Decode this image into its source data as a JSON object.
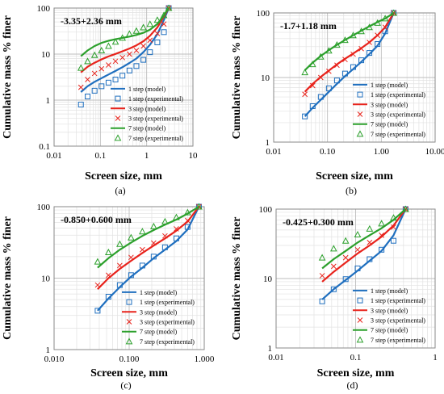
{
  "figure": {
    "ylabel": "Cumulative mass % finer",
    "xlabel": "Screen size, mm"
  },
  "chart_data": [
    {
      "type": "line",
      "panel": "(a)",
      "annotation": "-3.35+2.36 mm",
      "xlabel": "Screen size, mm",
      "ylabel": "Cumulative mass % finer",
      "x_scale": "log",
      "y_scale": "log",
      "xlim": [
        0.01,
        10
      ],
      "ylim": [
        0.1,
        100
      ],
      "x_ticks": [
        "0.01",
        "0.1",
        "1",
        "10"
      ],
      "y_ticks": [
        "0.1",
        "1",
        "10",
        "100"
      ],
      "legend": "bottom-right",
      "series": [
        {
          "name": "1 step (model)",
          "kind": "model",
          "color": "#1f6fbf",
          "x": [
            0.038,
            0.053,
            0.075,
            0.106,
            0.15,
            0.212,
            0.3,
            0.425,
            0.6,
            0.85,
            1.18,
            1.7,
            2.36,
            3.0
          ],
          "y": [
            1.5,
            2.0,
            2.5,
            3.0,
            3.6,
            4.3,
            5.2,
            6.4,
            8.0,
            11,
            16,
            27,
            55,
            100
          ]
        },
        {
          "name": "1 step (experimental)",
          "kind": "experimental",
          "color": "#1f6fbf",
          "marker": "square",
          "x": [
            0.038,
            0.053,
            0.075,
            0.106,
            0.15,
            0.212,
            0.3,
            0.425,
            0.6,
            0.85,
            1.18,
            1.7,
            2.36,
            3.0
          ],
          "y": [
            0.8,
            1.2,
            1.6,
            2.0,
            2.4,
            2.8,
            3.4,
            4.4,
            5.5,
            7.5,
            11,
            18,
            30,
            100
          ]
        },
        {
          "name": "3 step (model)",
          "kind": "model",
          "color": "#e8231c",
          "x": [
            0.038,
            0.053,
            0.075,
            0.106,
            0.15,
            0.212,
            0.3,
            0.425,
            0.6,
            0.85,
            1.18,
            1.7,
            2.36,
            3.0
          ],
          "y": [
            4.0,
            5.3,
            6.5,
            7.7,
            8.9,
            10.1,
            11.5,
            13.2,
            15.5,
            19,
            25,
            38,
            65,
            100
          ]
        },
        {
          "name": "3 step (experimental)",
          "kind": "experimental",
          "color": "#e8231c",
          "marker": "x",
          "x": [
            0.038,
            0.053,
            0.075,
            0.106,
            0.15,
            0.212,
            0.3,
            0.425,
            0.6,
            0.85,
            1.18,
            1.7,
            2.36,
            3.0
          ],
          "y": [
            1.9,
            2.8,
            3.8,
            4.8,
            5.8,
            7.0,
            8.4,
            10.0,
            12.0,
            15,
            20,
            28,
            45,
            100
          ]
        },
        {
          "name": "7 step (model)",
          "kind": "model",
          "color": "#2ca02c",
          "x": [
            0.038,
            0.053,
            0.075,
            0.106,
            0.15,
            0.212,
            0.3,
            0.425,
            0.6,
            0.85,
            1.18,
            1.7,
            2.36,
            3.0
          ],
          "y": [
            9.0,
            12.0,
            15.0,
            17.5,
            19.5,
            21.0,
            22.5,
            24.0,
            26.0,
            29,
            34,
            45,
            70,
            100
          ]
        },
        {
          "name": "7 step (experimental)",
          "kind": "experimental",
          "color": "#2ca02c",
          "marker": "triangle",
          "x": [
            0.038,
            0.053,
            0.075,
            0.106,
            0.15,
            0.212,
            0.3,
            0.425,
            0.6,
            0.85,
            1.18,
            1.7,
            2.36,
            3.0
          ],
          "y": [
            5.0,
            7.0,
            9.5,
            12.0,
            15.0,
            18.5,
            22.5,
            27.5,
            32.0,
            38,
            45,
            55,
            70,
            100
          ]
        }
      ]
    },
    {
      "type": "line",
      "panel": "(b)",
      "annotation": "-1.7+1.18 mm",
      "xlabel": "Screen size, mm",
      "ylabel": "Cumulative mass % finer",
      "x_scale": "log",
      "y_scale": "log",
      "xlim": [
        0.01,
        10
      ],
      "ylim": [
        1,
        100
      ],
      "x_ticks": [
        "0.01",
        "0.10",
        "1.00",
        "10.00"
      ],
      "y_ticks": [
        "1",
        "10",
        "100"
      ],
      "legend": "bottom-right",
      "series": [
        {
          "name": "1 step (model)",
          "kind": "model",
          "color": "#1f6fbf",
          "x": [
            0.038,
            0.053,
            0.075,
            0.106,
            0.15,
            0.212,
            0.3,
            0.425,
            0.6,
            0.85,
            1.18,
            1.7
          ],
          "y": [
            2.5,
            3.4,
            4.5,
            6.0,
            8.0,
            10.5,
            13.5,
            17.5,
            23,
            31,
            48,
            100
          ]
        },
        {
          "name": "1 step (experimental)",
          "kind": "experimental",
          "color": "#1f6fbf",
          "marker": "square",
          "x": [
            0.038,
            0.053,
            0.075,
            0.106,
            0.15,
            0.212,
            0.3,
            0.425,
            0.6,
            0.85,
            1.18,
            1.7
          ],
          "y": [
            2.5,
            3.6,
            5.0,
            6.8,
            9.0,
            11.5,
            14.5,
            18.5,
            24,
            33,
            52,
            100
          ]
        },
        {
          "name": "3 step (model)",
          "kind": "model",
          "color": "#e8231c",
          "x": [
            0.038,
            0.053,
            0.075,
            0.106,
            0.15,
            0.212,
            0.3,
            0.425,
            0.6,
            0.85,
            1.18,
            1.7
          ],
          "y": [
            6.0,
            8.0,
            10.2,
            12.8,
            16.0,
            19.5,
            23.5,
            28.5,
            35,
            45,
            60,
            100
          ]
        },
        {
          "name": "3 step (experimental)",
          "kind": "experimental",
          "color": "#e8231c",
          "marker": "x",
          "x": [
            0.038,
            0.053,
            0.075,
            0.106,
            0.15,
            0.212,
            0.3,
            0.425,
            0.6,
            0.85,
            1.18,
            1.7
          ],
          "y": [
            5.5,
            7.5,
            10.0,
            12.5,
            15.5,
            19.0,
            23.0,
            28.0,
            35,
            45,
            60,
            100
          ]
        },
        {
          "name": "7 step (model)",
          "kind": "model",
          "color": "#2ca02c",
          "x": [
            0.038,
            0.053,
            0.075,
            0.106,
            0.15,
            0.212,
            0.3,
            0.425,
            0.6,
            0.85,
            1.18,
            1.7
          ],
          "y": [
            13,
            17,
            21.5,
            26.5,
            32,
            38,
            45,
            53,
            62,
            72,
            82,
            100
          ]
        },
        {
          "name": "7 step (experimental)",
          "kind": "experimental",
          "color": "#2ca02c",
          "marker": "triangle",
          "x": [
            0.038,
            0.053,
            0.075,
            0.106,
            0.15,
            0.212,
            0.3,
            0.425,
            0.6,
            0.85,
            1.18,
            1.7
          ],
          "y": [
            12,
            16,
            21,
            26,
            32,
            38,
            45,
            52,
            60,
            70,
            82,
            100
          ]
        }
      ]
    },
    {
      "type": "line",
      "panel": "(c)",
      "annotation": "-0.850+0.600 mm",
      "xlabel": "Screen size, mm",
      "ylabel": "Cumulative mass % finer",
      "x_scale": "log",
      "y_scale": "log",
      "xlim": [
        0.01,
        1
      ],
      "ylim": [
        1,
        100
      ],
      "x_ticks": [
        "0.010",
        "0.100",
        "1.000"
      ],
      "y_ticks": [
        "1",
        "10",
        "100"
      ],
      "legend": "bottom-right",
      "series": [
        {
          "name": "1 step (model)",
          "kind": "model",
          "color": "#1f6fbf",
          "x": [
            0.038,
            0.053,
            0.075,
            0.106,
            0.15,
            0.212,
            0.3,
            0.425,
            0.6,
            0.85
          ],
          "y": [
            3.5,
            5.2,
            7.5,
            10.5,
            14,
            19,
            25,
            33,
            48,
            100
          ]
        },
        {
          "name": "1 step (experimental)",
          "kind": "experimental",
          "color": "#1f6fbf",
          "marker": "square",
          "x": [
            0.038,
            0.053,
            0.075,
            0.106,
            0.15,
            0.212,
            0.3,
            0.425,
            0.6,
            0.85
          ],
          "y": [
            3.5,
            5.5,
            8.0,
            11,
            15,
            20,
            27,
            36,
            52,
            100
          ]
        },
        {
          "name": "3 step (model)",
          "kind": "model",
          "color": "#e8231c",
          "x": [
            0.038,
            0.053,
            0.075,
            0.106,
            0.15,
            0.212,
            0.3,
            0.425,
            0.6,
            0.85
          ],
          "y": [
            7.0,
            10.0,
            13.5,
            17.5,
            22.5,
            28.5,
            36,
            46,
            62,
            100
          ]
        },
        {
          "name": "3 step (experimental)",
          "kind": "experimental",
          "color": "#e8231c",
          "marker": "x",
          "x": [
            0.038,
            0.053,
            0.075,
            0.106,
            0.15,
            0.212,
            0.3,
            0.425,
            0.6,
            0.85
          ],
          "y": [
            8.0,
            11,
            15,
            19.5,
            25,
            31,
            39,
            49,
            64,
            100
          ]
        },
        {
          "name": "7 step (model)",
          "kind": "model",
          "color": "#2ca02c",
          "x": [
            0.038,
            0.053,
            0.075,
            0.106,
            0.15,
            0.212,
            0.3,
            0.425,
            0.6,
            0.85
          ],
          "y": [
            14,
            19,
            25,
            31.5,
            39,
            47,
            56,
            66,
            80,
            100
          ]
        },
        {
          "name": "7 step (experimental)",
          "kind": "experimental",
          "color": "#2ca02c",
          "marker": "triangle",
          "x": [
            0.038,
            0.053,
            0.075,
            0.106,
            0.15,
            0.212,
            0.3,
            0.425,
            0.6,
            0.85
          ],
          "y": [
            17,
            23,
            30,
            37,
            45,
            53,
            62,
            71,
            83,
            100
          ]
        }
      ]
    },
    {
      "type": "line",
      "panel": "(d)",
      "annotation": "-0.425+0.300 mm",
      "xlabel": "Screen size, mm",
      "ylabel": "Cumulative mass % finer",
      "x_scale": "log",
      "y_scale": "log",
      "xlim": [
        0.01,
        1
      ],
      "ylim": [
        1,
        100
      ],
      "x_ticks": [
        "0.01",
        "0.1",
        "1"
      ],
      "y_ticks": [
        "1",
        "10",
        "100"
      ],
      "legend": "bottom-right",
      "series": [
        {
          "name": "1 step (model)",
          "kind": "model",
          "color": "#1f6fbf",
          "x": [
            0.038,
            0.053,
            0.075,
            0.106,
            0.15,
            0.212,
            0.3,
            0.425
          ],
          "y": [
            5.0,
            7.0,
            9.5,
            13,
            18,
            25,
            42,
            100
          ]
        },
        {
          "name": "1 step (experimental)",
          "kind": "experimental",
          "color": "#1f6fbf",
          "marker": "square",
          "x": [
            0.038,
            0.053,
            0.075,
            0.106,
            0.15,
            0.212,
            0.3,
            0.425
          ],
          "y": [
            4.7,
            7.0,
            9.8,
            14,
            19,
            26,
            35,
            100
          ]
        },
        {
          "name": "3 step (model)",
          "kind": "model",
          "color": "#e8231c",
          "x": [
            0.038,
            0.053,
            0.075,
            0.106,
            0.15,
            0.212,
            0.3,
            0.425
          ],
          "y": [
            9.0,
            12.5,
            17,
            23,
            30,
            40,
            58,
            100
          ]
        },
        {
          "name": "3 step (experimental)",
          "kind": "experimental",
          "color": "#e8231c",
          "marker": "x",
          "x": [
            0.038,
            0.053,
            0.075,
            0.106,
            0.15,
            0.212,
            0.3,
            0.425
          ],
          "y": [
            11,
            15,
            20,
            26,
            33,
            42,
            55,
            100
          ]
        },
        {
          "name": "7 step (model)",
          "kind": "model",
          "color": "#2ca02c",
          "x": [
            0.038,
            0.053,
            0.075,
            0.106,
            0.15,
            0.212,
            0.3,
            0.425
          ],
          "y": [
            14,
            19,
            25,
            33,
            42,
            53,
            70,
            100
          ]
        },
        {
          "name": "7 step (experimental)",
          "kind": "experimental",
          "color": "#2ca02c",
          "marker": "triangle",
          "x": [
            0.038,
            0.053,
            0.075,
            0.106,
            0.15,
            0.212,
            0.3,
            0.425
          ],
          "y": [
            20,
            27,
            35,
            43,
            52,
            62,
            75,
            100
          ]
        }
      ]
    }
  ]
}
